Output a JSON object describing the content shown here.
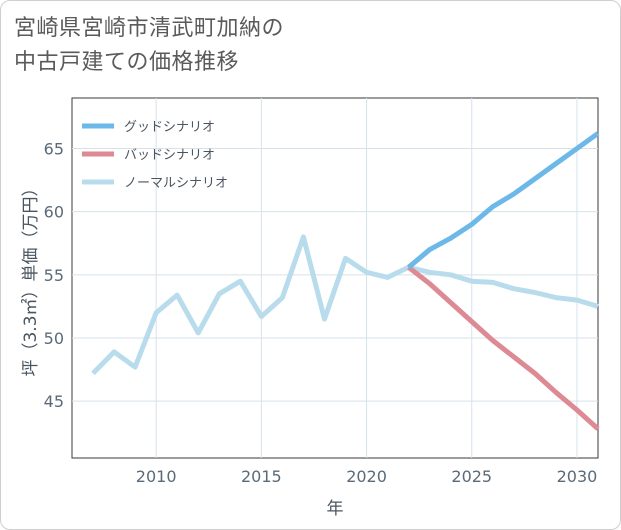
{
  "title_lines": [
    "宮崎県宮崎市清武町加納の",
    "中古戸建ての価格推移"
  ],
  "chart_data": {
    "type": "line",
    "title": "宮崎県宮崎市清武町加納の中古戸建ての価格推移",
    "xlabel": "年",
    "ylabel": "坪（3.3㎡）単価（万円）",
    "xlim": [
      2006,
      2031
    ],
    "ylim": [
      40.5,
      69
    ],
    "xticks": [
      2010,
      2015,
      2020,
      2025,
      2030
    ],
    "yticks": [
      45,
      50,
      55,
      60,
      65
    ],
    "grid": true,
    "legend_position": "top-left",
    "series": [
      {
        "name": "グッドシナリオ",
        "color": "#6cb8e8",
        "x": [
          2022,
          2023,
          2024,
          2025,
          2026,
          2027,
          2028,
          2029,
          2030,
          2031
        ],
        "y": [
          55.6,
          57.0,
          57.9,
          59.0,
          60.4,
          61.4,
          62.6,
          63.8,
          65.0,
          66.2
        ]
      },
      {
        "name": "バッドシナリオ",
        "color": "#dd8a94",
        "x": [
          2022,
          2023,
          2024,
          2025,
          2026,
          2027,
          2028,
          2029,
          2030,
          2031
        ],
        "y": [
          55.6,
          54.3,
          52.8,
          51.3,
          49.8,
          48.5,
          47.2,
          45.7,
          44.3,
          42.8
        ]
      },
      {
        "name": "ノーマルシナリオ",
        "color": "#b8dcec",
        "x": [
          2007,
          2008,
          2009,
          2010,
          2011,
          2012,
          2013,
          2014,
          2015,
          2016,
          2017,
          2018,
          2019,
          2020,
          2021,
          2022,
          2023,
          2024,
          2025,
          2026,
          2027,
          2028,
          2029,
          2030,
          2031
        ],
        "y": [
          47.2,
          48.9,
          47.7,
          52.0,
          53.4,
          50.4,
          53.5,
          54.5,
          51.7,
          53.2,
          58.0,
          51.5,
          56.3,
          55.2,
          54.8,
          55.6,
          55.2,
          55.0,
          54.5,
          54.4,
          53.9,
          53.6,
          53.2,
          53.0,
          52.5
        ]
      }
    ]
  }
}
